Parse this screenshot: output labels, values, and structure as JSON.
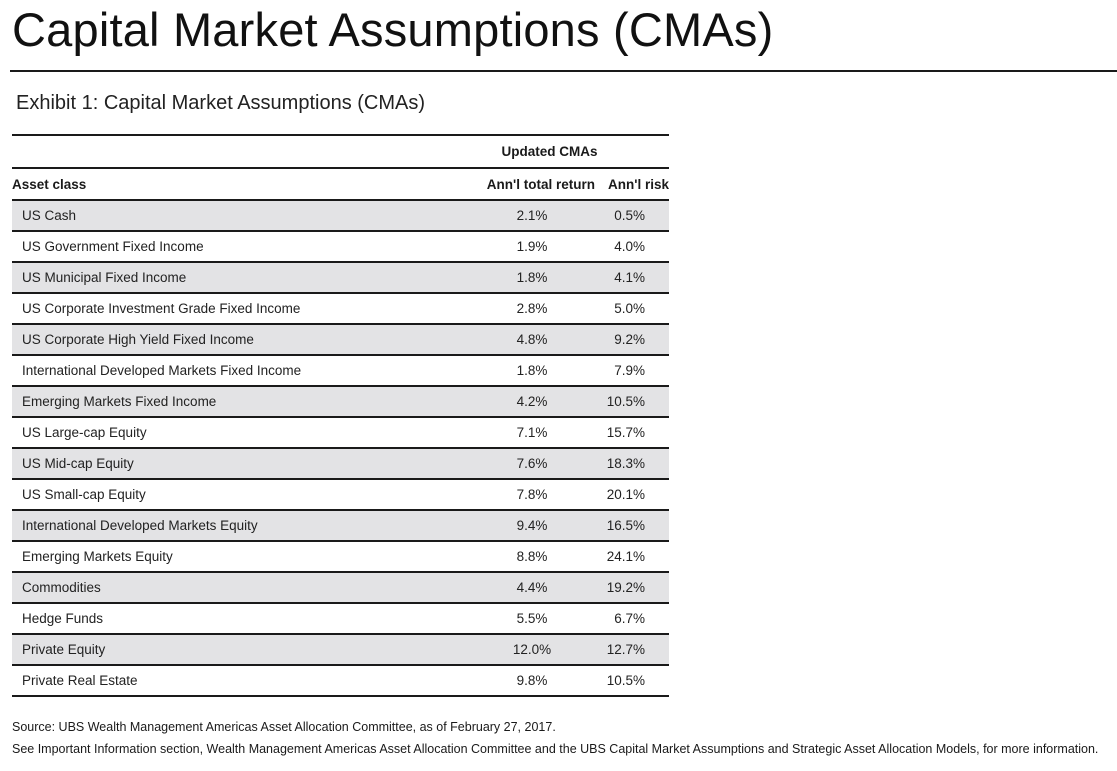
{
  "page_title": "Capital Market Assumptions (CMAs)",
  "exhibit_title": "Exhibit 1: Capital Market Assumptions (CMAs)",
  "table": {
    "group_header": "Updated CMAs",
    "col_asset": "Asset class",
    "col_return": "Ann'l total return",
    "col_risk": "Ann'l risk",
    "rows": [
      {
        "asset": "US Cash",
        "ret": "2.1%",
        "risk": "0.5%"
      },
      {
        "asset": "US Government Fixed Income",
        "ret": "1.9%",
        "risk": "4.0%"
      },
      {
        "asset": "US Municipal Fixed Income",
        "ret": "1.8%",
        "risk": "4.1%"
      },
      {
        "asset": "US Corporate Investment Grade Fixed Income",
        "ret": "2.8%",
        "risk": "5.0%"
      },
      {
        "asset": "US Corporate High Yield Fixed Income",
        "ret": "4.8%",
        "risk": "9.2%"
      },
      {
        "asset": "International Developed Markets Fixed Income",
        "ret": "1.8%",
        "risk": "7.9%"
      },
      {
        "asset": "Emerging Markets Fixed Income",
        "ret": "4.2%",
        "risk": "10.5%"
      },
      {
        "asset": "US Large-cap Equity",
        "ret": "7.1%",
        "risk": "15.7%"
      },
      {
        "asset": "US Mid-cap Equity",
        "ret": "7.6%",
        "risk": "18.3%"
      },
      {
        "asset": "US Small-cap Equity",
        "ret": "7.8%",
        "risk": "20.1%"
      },
      {
        "asset": "International Developed Markets Equity",
        "ret": "9.4%",
        "risk": "16.5%"
      },
      {
        "asset": "Emerging Markets Equity",
        "ret": "8.8%",
        "risk": "24.1%"
      },
      {
        "asset": "Commodities",
        "ret": "4.4%",
        "risk": "19.2%"
      },
      {
        "asset": "Hedge Funds",
        "ret": "5.5%",
        "risk": "6.7%"
      },
      {
        "asset": "Private Equity",
        "ret": "12.0%",
        "risk": "12.7%"
      },
      {
        "asset": "Private Real Estate",
        "ret": "9.8%",
        "risk": "10.5%"
      }
    ]
  },
  "footnotes": {
    "source": "Source:  UBS Wealth Management Americas Asset Allocation Committee, as of February 27, 2017.",
    "note": "See Important Information section, Wealth Management Americas Asset Allocation Committee and the UBS Capital Market Assumptions and Strategic Asset Allocation Models, for more information."
  }
}
